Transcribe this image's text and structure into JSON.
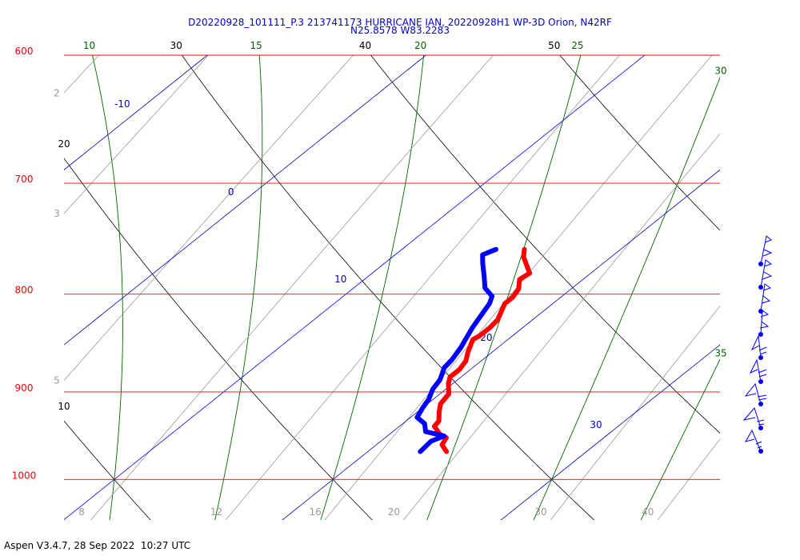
{
  "chart_data": {
    "type": "skewt",
    "title": "D20220928_101111_P.3 213741173 HURRICANE IAN, 20220928H1 WP-3D Orion, N42RF",
    "subtitle": "N25.8578 W83.2283",
    "footer": "Aspen V3.4.7, 28 Sep 2022  10:27 UTC",
    "log_y": true,
    "ylim": [
      1050,
      600
    ],
    "yticks": [
      600,
      700,
      800,
      900,
      1000
    ],
    "xlim": [
      7.7,
      37.7
    ],
    "xticks": [
      -10,
      0,
      10,
      20,
      30
    ],
    "dry_adiabats": [
      10,
      20,
      30,
      40,
      50
    ],
    "moist_adiabats": [
      10,
      15,
      20,
      25,
      30,
      35
    ],
    "mixing_ratios": [
      2,
      3,
      5,
      8,
      12,
      16,
      20,
      30,
      40
    ],
    "isobar_color": "#ff0000",
    "isotherm_color": "#0000cc",
    "dry_adiabat_color": "#000000",
    "moist_adiabat_color": "#006600",
    "mixing_ratio_color": "#999999",
    "series": [
      {
        "color": "#ff0000",
        "values": [
          758,
          765,
          775,
          780,
          786,
          795,
          803,
          809,
          817,
          825,
          833,
          841,
          845,
          858,
          867,
          876,
          884,
          891,
          902,
          913,
          922,
          932,
          938,
          947,
          951,
          959,
          967
        ],
        "x": [
          15.6,
          16.0,
          16.8,
          17.2,
          17.1,
          17.6,
          17.8,
          17.8,
          18.1,
          18.4,
          18.5,
          18.5,
          18.4,
          18.9,
          19.3,
          19.5,
          19.5,
          19.8,
          20.4,
          20.6,
          21.0,
          21.5,
          21.6,
          22.3,
          22.8,
          23.0,
          23.6
        ]
      },
      {
        "color": "#0000ff",
        "values": [
          758,
          763,
          771,
          783,
          794,
          802,
          809,
          817,
          825,
          833,
          843,
          853,
          866,
          874,
          887,
          897,
          908,
          917,
          928,
          935,
          944,
          949,
          955,
          967
        ],
        "x": [
          14.3,
          14.0,
          14.5,
          15.3,
          16.0,
          16.8,
          17.1,
          17.3,
          17.5,
          17.7,
          18.0,
          18.3,
          18.6,
          18.7,
          19.2,
          19.4,
          19.8,
          20.0,
          20.3,
          21.0,
          21.5,
          22.6,
          22.3,
          22.4
        ]
      }
    ]
  }
}
